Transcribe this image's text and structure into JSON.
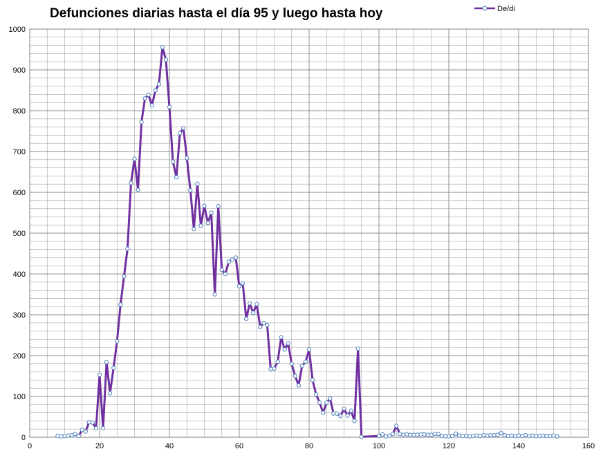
{
  "chart_data": {
    "type": "line",
    "title": "Defunciones diarias hasta el día 95 y luego hasta hoy",
    "xlabel": "",
    "ylabel": "",
    "xlim": [
      0,
      160
    ],
    "ylim": [
      0,
      1000
    ],
    "xticks": [
      0,
      20,
      40,
      60,
      80,
      100,
      120,
      140,
      160
    ],
    "yticks": [
      0,
      100,
      200,
      300,
      400,
      500,
      600,
      700,
      800,
      900,
      1000
    ],
    "grid": true,
    "legend": "top-right",
    "colors": {
      "line": "#7030a0",
      "marker_edge": "#4f81bd",
      "marker_fill": "#ffffff",
      "grid": "#a6a6a6"
    },
    "series": [
      {
        "name": "De/di",
        "x": [
          8,
          9,
          10,
          11,
          12,
          13,
          14,
          15,
          16,
          17,
          18,
          19,
          20,
          21,
          22,
          23,
          24,
          25,
          26,
          27,
          28,
          29,
          30,
          31,
          32,
          33,
          34,
          35,
          36,
          37,
          38,
          39,
          40,
          41,
          42,
          43,
          44,
          45,
          46,
          47,
          48,
          49,
          50,
          51,
          52,
          53,
          54,
          55,
          56,
          57,
          58,
          59,
          60,
          61,
          62,
          63,
          64,
          65,
          66,
          67,
          68,
          69,
          70,
          71,
          72,
          73,
          74,
          75,
          76,
          77,
          78,
          79,
          80,
          81,
          82,
          83,
          84,
          85,
          86,
          87,
          88,
          89,
          90,
          91,
          92,
          93,
          94,
          95,
          100,
          101,
          102,
          103,
          104,
          105,
          106,
          107,
          108,
          109,
          110,
          111,
          112,
          113,
          114,
          115,
          116,
          117,
          118,
          119,
          120,
          121,
          122,
          123,
          124,
          125,
          126,
          127,
          128,
          129,
          130,
          131,
          132,
          133,
          134,
          135,
          136,
          137,
          138,
          139,
          140,
          141,
          142,
          143,
          144,
          145,
          146,
          147,
          148,
          149,
          150,
          151
        ],
        "values": [
          3,
          2,
          3,
          4,
          5,
          8,
          3,
          18,
          14,
          37,
          36,
          22,
          153,
          22,
          184,
          108,
          170,
          235,
          325,
          394,
          462,
          623,
          682,
          606,
          772,
          830,
          839,
          813,
          850,
          865,
          955,
          925,
          809,
          675,
          637,
          745,
          757,
          684,
          605,
          510,
          621,
          518,
          567,
          525,
          550,
          350,
          566,
          410,
          400,
          430,
          435,
          440,
          370,
          377,
          290,
          328,
          305,
          326,
          270,
          280,
          275,
          167,
          168,
          185,
          245,
          215,
          230,
          180,
          150,
          127,
          175,
          185,
          215,
          140,
          105,
          85,
          60,
          85,
          95,
          58,
          58,
          52,
          70,
          53,
          65,
          40,
          217,
          1,
          3,
          7,
          2,
          4,
          8,
          28,
          8,
          6,
          7,
          6,
          6,
          6,
          7,
          7,
          6,
          6,
          8,
          8,
          3,
          2,
          2,
          3,
          9,
          4,
          3,
          3,
          2,
          3,
          4,
          3,
          5,
          4,
          5,
          5,
          6,
          10,
          5,
          3,
          4,
          3,
          4,
          3,
          5,
          3,
          4,
          3,
          3,
          4,
          3,
          3,
          4,
          2
        ]
      }
    ]
  }
}
